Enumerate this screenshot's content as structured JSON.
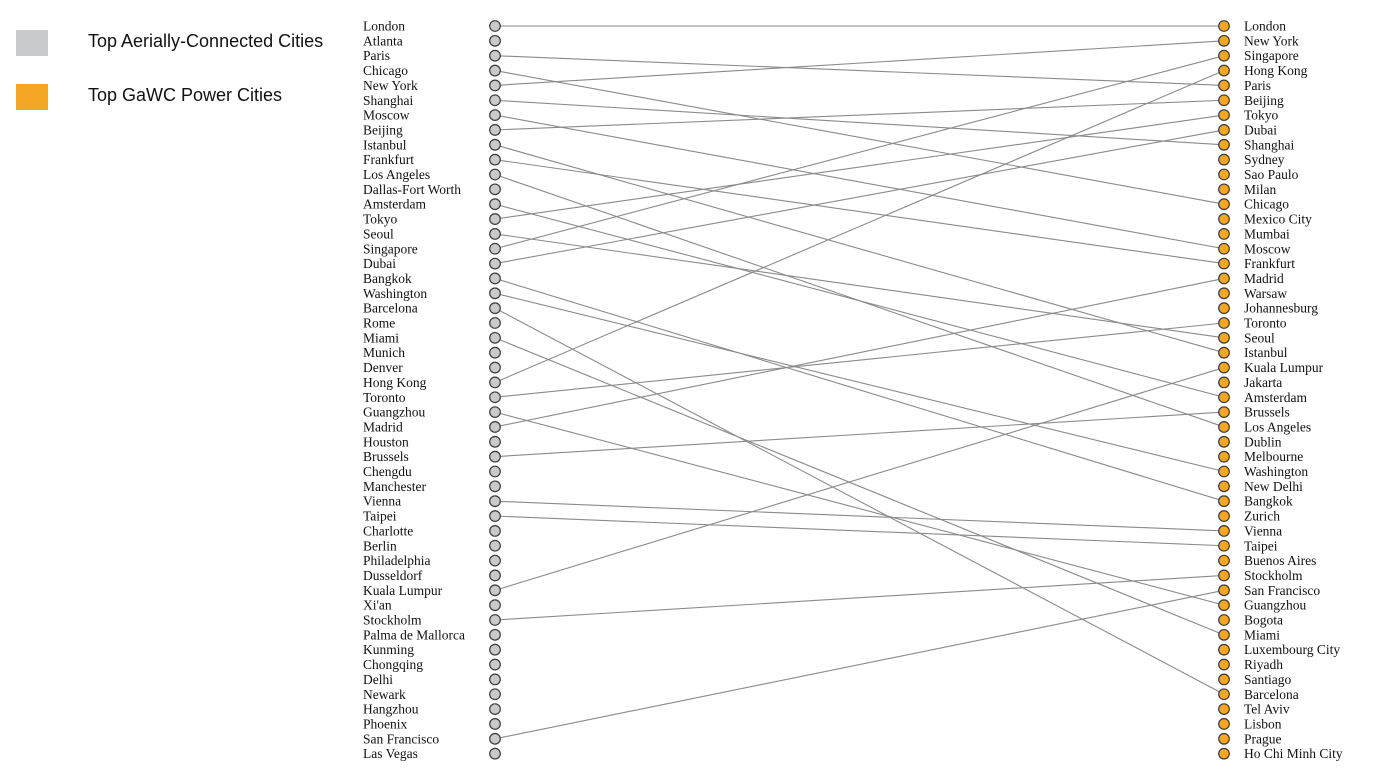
{
  "legend": {
    "items": [
      {
        "label": "Top Aerially-Connected Cities",
        "color": "#c8cacc"
      },
      {
        "label": "Top GaWC Power Cities",
        "color": "#f5a623"
      }
    ]
  },
  "colors": {
    "left_node": "#c8cacc",
    "right_node": "#f5a623",
    "connector": "#8a8a8a"
  },
  "left_cities": [
    "London",
    "Atlanta",
    "Paris",
    "Chicago",
    "New York",
    "Shanghai",
    "Moscow",
    "Beijing",
    "Istanbul",
    "Frankfurt",
    "Los Angeles",
    "Dallas-Fort Worth",
    "Amsterdam",
    "Tokyo",
    "Seoul",
    "Singapore",
    "Dubai",
    "Bangkok",
    "Washington",
    "Barcelona",
    "Rome",
    "Miami",
    "Munich",
    "Denver",
    "Hong Kong",
    "Toronto",
    "Guangzhou",
    "Madrid",
    "Houston",
    "Brussels",
    "Chengdu",
    "Manchester",
    "Vienna",
    "Taipei",
    "Charlotte",
    "Berlin",
    "Philadelphia",
    "Dusseldorf",
    "Kuala Lumpur",
    "Xi'an",
    "Stockholm",
    "Palma de Mallorca",
    "Kunming",
    "Chongqing",
    "Delhi",
    "Newark",
    "Hangzhou",
    "Phoenix",
    "San Francisco",
    "Las Vegas"
  ],
  "right_cities": [
    "London",
    "New York",
    "Singapore",
    "Hong Kong",
    "Paris",
    "Beijing",
    "Tokyo",
    "Dubai",
    "Shanghai",
    "Sydney",
    "Sao Paulo",
    "Milan",
    "Chicago",
    "Mexico City",
    "Mumbai",
    "Moscow",
    "Frankfurt",
    "Madrid",
    "Warsaw",
    "Johannesburg",
    "Toronto",
    "Seoul",
    "Istanbul",
    "Kuala Lumpur",
    "Jakarta",
    "Amsterdam",
    "Brussels",
    "Los Angeles",
    "Dublin",
    "Melbourne",
    "Washington",
    "New Delhi",
    "Bangkok",
    "Zurich",
    "Vienna",
    "Taipei",
    "Buenos Aires",
    "Stockholm",
    "San Francisco",
    "Guangzhou",
    "Bogota",
    "Miami",
    "Luxembourg City",
    "Riyadh",
    "Santiago",
    "Barcelona",
    "Tel Aviv",
    "Lisbon",
    "Prague",
    "Ho Chi Minh City"
  ]
}
